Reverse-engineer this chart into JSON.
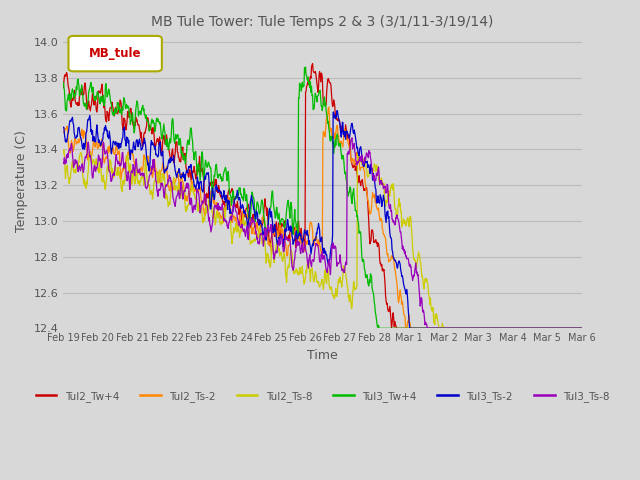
{
  "title": "MB Tule Tower: Tule Temps 2 & 3 (3/1/11-3/19/14)",
  "xlabel": "Time",
  "ylabel": "Temperature (C)",
  "ylim": [
    12.4,
    14.05
  ],
  "yticks": [
    12.4,
    12.6,
    12.8,
    13.0,
    13.2,
    13.4,
    13.6,
    13.8,
    14.0
  ],
  "xtick_labels": [
    "Feb 19",
    "Feb 20",
    "Feb 21",
    "Feb 22",
    "Feb 23",
    "Feb 24",
    "Feb 25",
    "Feb 26",
    "Feb 27",
    "Feb 28",
    "Mar 1",
    "Mar 2",
    "Mar 3",
    "Mar 4",
    "Mar 5",
    "Mar 6"
  ],
  "legend_label": "MB_tule",
  "series_colors": {
    "Tul2_Tw+4": "#cc0000",
    "Tul2_Ts-2": "#ff8800",
    "Tul2_Ts-8": "#cccc00",
    "Tul3_Tw+4": "#00bb00",
    "Tul3_Ts-2": "#0000cc",
    "Tul3_Ts-8": "#9900bb"
  },
  "background_color": "#d8d8d8",
  "grid_color": "#bbbbbb",
  "n_points": 960,
  "seed": 42
}
